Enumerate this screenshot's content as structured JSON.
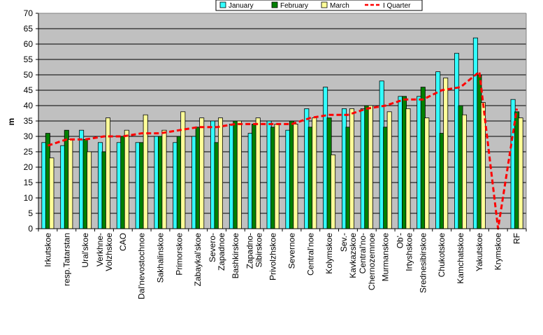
{
  "chart_data": {
    "type": "bar",
    "title": "",
    "xlabel": "",
    "ylabel": "m",
    "ylim": [
      0,
      70
    ],
    "ytick_step": 5,
    "grid": true,
    "legend_position": "top-right",
    "categories": [
      "Irkutskoe",
      "resp.Tatarstan",
      "Ural'skoe",
      "Verkhne-Volzhskoe",
      "CAO",
      "Dal'nevostochnoe",
      "Sakhalinskoe",
      "Primorskoe",
      "Zabaykal'skoe",
      "Severo-Zapadnoe",
      "Bashkirskoe",
      "Zapadno-Sibirskoe",
      "Privolzhskoe",
      "Severnoe",
      "Central'noe",
      "Kolymskoe",
      "Sev.-Kavkazskoe",
      "Central'no-Chernozemnoe",
      "Murmanskoe",
      "Ob'-Irtyshskoe",
      "Srednesibirskoe",
      "Chukotskoe",
      "Kamchatskoe",
      "Yakutskoe",
      "Krymskoe",
      "RF"
    ],
    "category_label_lines": [
      [
        "Irkutskoe"
      ],
      [
        "resp.Tatarstan"
      ],
      [
        "Ural'skoe"
      ],
      [
        "Verkhne-",
        "Volzhskoe"
      ],
      [
        "CAO"
      ],
      [
        "Dal'nevostochnoe"
      ],
      [
        "Sakhalinskoe"
      ],
      [
        "Primorskoe"
      ],
      [
        "Zabaykal'skoe"
      ],
      [
        "Severo-",
        "Zapadnoe"
      ],
      [
        "Bashkirskoe"
      ],
      [
        "Zapadno-",
        "Sibirskoe"
      ],
      [
        "Privolzhskoe"
      ],
      [
        "Severnoe"
      ],
      [
        "Central'noe"
      ],
      [
        "Kolymskoe"
      ],
      [
        "Sev.-",
        "Kavkazskoe"
      ],
      [
        "Central'no-",
        "Chernozemnoe"
      ],
      [
        "Murmanskoe"
      ],
      [
        "Ob'-",
        "Irtyshskoe"
      ],
      [
        "Srednesibirskoe"
      ],
      [
        "Chukotskoe"
      ],
      [
        "Kamchatskoe"
      ],
      [
        "Yakutskoe"
      ],
      [
        "Krymskoe"
      ],
      [
        "RF"
      ]
    ],
    "series": [
      {
        "name": "January",
        "kind": "bar",
        "color": "#33ffff",
        "values": [
          28,
          27,
          32,
          28,
          28,
          28,
          30,
          28,
          30,
          35,
          34,
          31,
          35,
          32,
          39,
          46,
          39,
          39,
          48,
          43,
          43,
          51,
          57,
          62,
          null,
          42
        ]
      },
      {
        "name": "February",
        "kind": "bar",
        "color": "#008000",
        "values": [
          31,
          32,
          29,
          25,
          30,
          28,
          30,
          30,
          33,
          28,
          35,
          34,
          33,
          35,
          33,
          36,
          33,
          40,
          33,
          43,
          46,
          31,
          40,
          50,
          null,
          38
        ]
      },
      {
        "name": "March",
        "kind": "bar",
        "color": "#ffff99",
        "values": [
          23,
          29,
          25,
          36,
          32,
          37,
          32,
          38,
          36,
          36,
          35,
          36,
          34,
          34,
          36,
          24,
          39,
          40,
          38,
          39,
          36,
          49,
          37,
          41,
          null,
          36
        ]
      },
      {
        "name": "I Quarter",
        "kind": "line",
        "color": "#ff0000",
        "values": [
          27,
          29,
          29,
          30,
          30,
          31,
          31,
          32,
          33,
          33,
          34,
          34,
          34,
          34,
          36,
          37,
          37,
          39,
          40,
          42,
          42,
          45,
          46,
          51,
          0,
          39
        ]
      }
    ]
  }
}
